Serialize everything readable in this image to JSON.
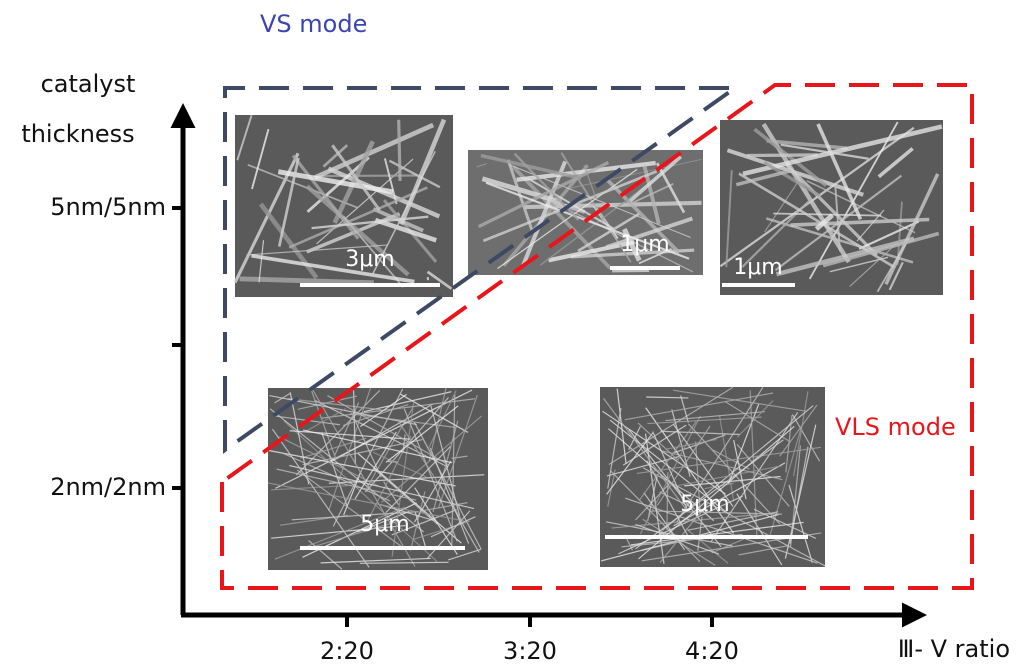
{
  "title": "VS mode",
  "y_axis": {
    "label_lines": [
      "catalyst",
      "thickness"
    ],
    "ticks": [
      "5nm/5nm",
      "",
      "2nm/2nm"
    ]
  },
  "x_axis": {
    "label": "Ⅲ- V ratio",
    "ticks": [
      "2:20",
      "3:20",
      "4:20"
    ]
  },
  "region_label": "VLS mode",
  "images": [
    {
      "scale": "3μm"
    },
    {
      "scale": "1μm"
    },
    {
      "scale": "1μm"
    },
    {
      "scale": "5μm"
    },
    {
      "scale": "5μm"
    }
  ]
}
